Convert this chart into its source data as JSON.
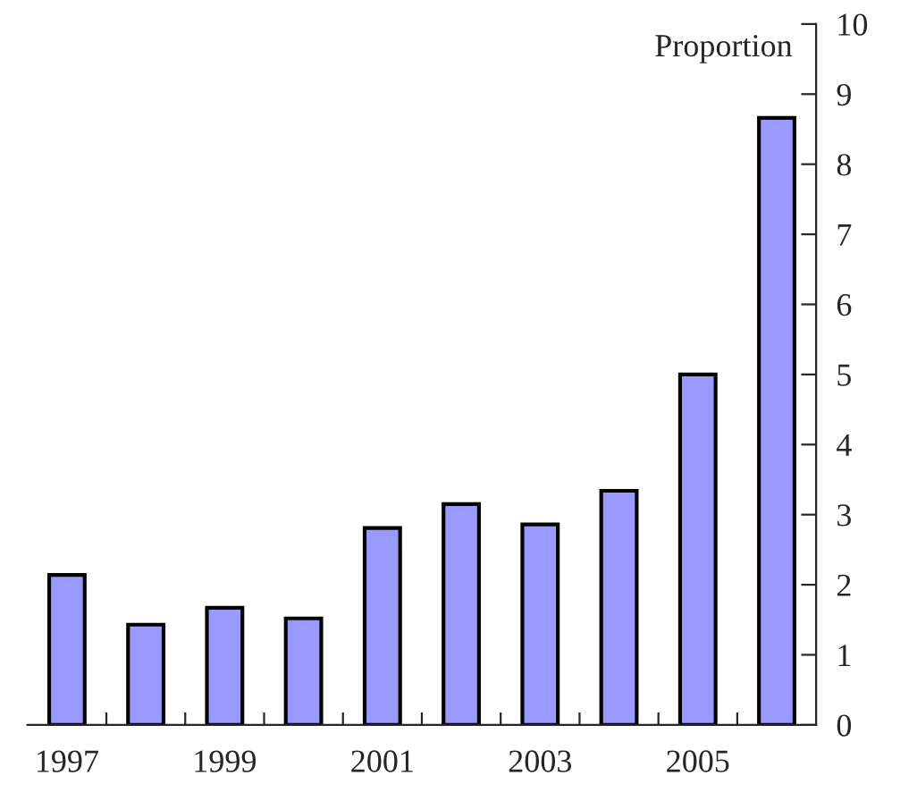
{
  "chart_data": {
    "type": "bar",
    "ylabel": "Proportion",
    "categories": [
      "1997",
      null,
      "1999",
      null,
      "2001",
      null,
      "2003",
      null,
      "2005",
      null
    ],
    "values": [
      2.14,
      1.43,
      1.67,
      1.52,
      2.81,
      3.15,
      2.86,
      3.34,
      5.0,
      8.66
    ],
    "color": "#9999ff",
    "ylim": [
      0,
      10
    ],
    "yticks": [
      0,
      1,
      2,
      3,
      4,
      5,
      6,
      7,
      8,
      9,
      10
    ],
    "grid": false,
    "legend": false
  }
}
